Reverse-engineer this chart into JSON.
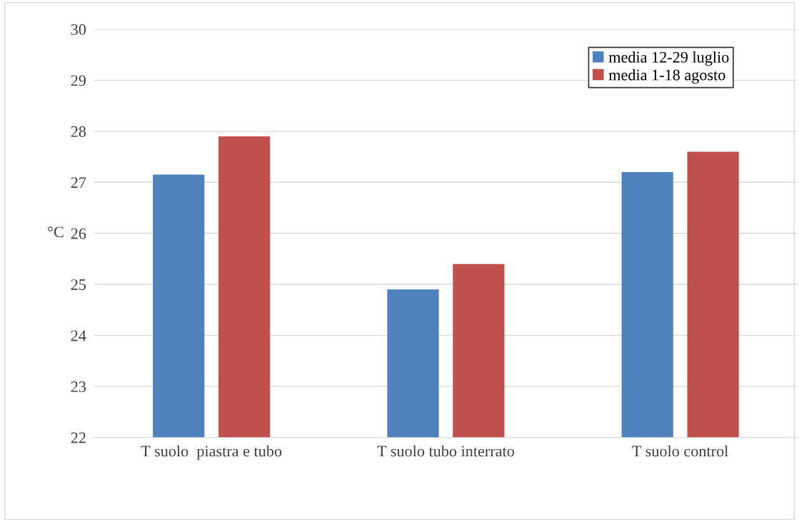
{
  "chart_data": {
    "type": "bar",
    "ylabel": "°C",
    "categories": [
      "T suolo  piastra e tubo",
      "T suolo tubo interrato",
      "T suolo control"
    ],
    "series": [
      {
        "name": "media 12-29 luglio",
        "color": "#4f81bd",
        "values": [
          27.15,
          24.9,
          27.2
        ]
      },
      {
        "name": "media 1-18 agosto",
        "color": "#c0504d",
        "values": [
          27.9,
          25.4,
          27.6
        ]
      }
    ],
    "ylim": [
      22,
      30
    ],
    "yticks": [
      22,
      23,
      24,
      25,
      26,
      27,
      28,
      29,
      30
    ],
    "grid": "y",
    "legend": "top right"
  }
}
